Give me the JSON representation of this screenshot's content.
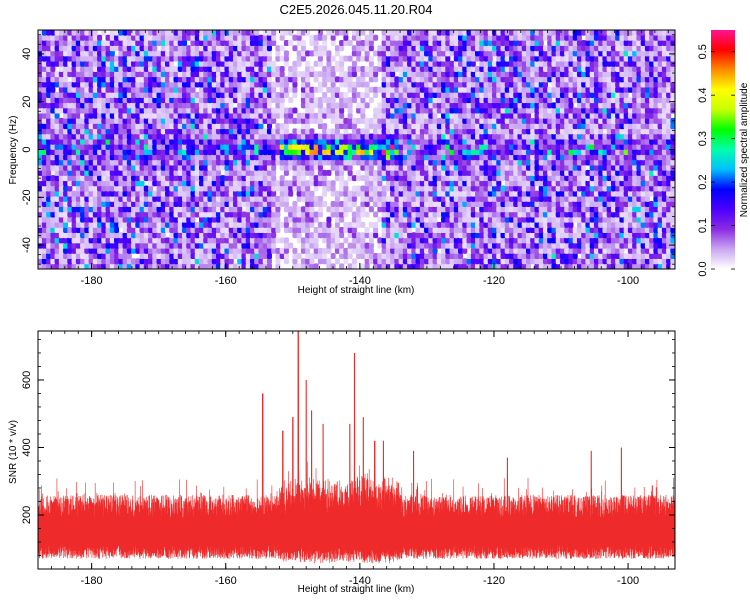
{
  "chart_data": [
    {
      "type": "heatmap",
      "title": "C2E5.2026.045.11.20.R04",
      "xlabel": "Height of straight line (km)",
      "ylabel": "Frequency (Hz)",
      "xlim": [
        -188,
        -93
      ],
      "ylim": [
        -50,
        50
      ],
      "x_ticks": [
        -180,
        -160,
        -140,
        -120,
        -100
      ],
      "y_ticks": [
        -40,
        -20,
        0,
        20,
        40
      ],
      "colorbar": {
        "label": "Normalized spectral amplitude",
        "range": [
          0.0,
          0.55
        ],
        "ticks": [
          0.0,
          0.1,
          0.2,
          0.3,
          0.4,
          0.5
        ],
        "colors": [
          "#ffffff",
          "#c9a6f2",
          "#8a2be2",
          "#4b00ff",
          "#0000ff",
          "#00bfff",
          "#00ffaa",
          "#00ff00",
          "#c8ff00",
          "#ffff00",
          "#ff8c00",
          "#ff0000",
          "#ff1493"
        ]
      },
      "signal": {
        "center_frequency_hz": 0,
        "band_halfwidth_hz": 4,
        "peak_span_km": [
          -152,
          -134
        ],
        "peak_amplitude": 0.45,
        "background_amplitude": 0.08,
        "quiet_region_km": [
          -153,
          -137
        ]
      }
    },
    {
      "type": "line",
      "title": "",
      "xlabel": "Height of straight line (km)",
      "ylabel": "SNR (10 * v/v)",
      "xlim": [
        -188,
        -93
      ],
      "ylim": [
        40,
        745
      ],
      "x_ticks": [
        -180,
        -160,
        -140,
        -120,
        -100
      ],
      "y_ticks": [
        200,
        400,
        600
      ],
      "series": [
        {
          "name": "SNR",
          "color": "#ee2a2a",
          "baseline_range": [
            70,
            230
          ],
          "typical_max": 310,
          "peaks": [
            {
              "x": -154.5,
              "y": 560
            },
            {
              "x": -151.5,
              "y": 450
            },
            {
              "x": -150.0,
              "y": 490
            },
            {
              "x": -149.2,
              "y": 745
            },
            {
              "x": -148.0,
              "y": 600
            },
            {
              "x": -147.2,
              "y": 510
            },
            {
              "x": -145.5,
              "y": 470
            },
            {
              "x": -141.5,
              "y": 470
            },
            {
              "x": -140.8,
              "y": 680
            },
            {
              "x": -139.5,
              "y": 490
            },
            {
              "x": -137.8,
              "y": 420
            },
            {
              "x": -136.5,
              "y": 420
            },
            {
              "x": -132.0,
              "y": 390
            },
            {
              "x": -118.0,
              "y": 370
            },
            {
              "x": -105.5,
              "y": 390
            },
            {
              "x": -101.0,
              "y": 400
            }
          ]
        }
      ]
    }
  ]
}
